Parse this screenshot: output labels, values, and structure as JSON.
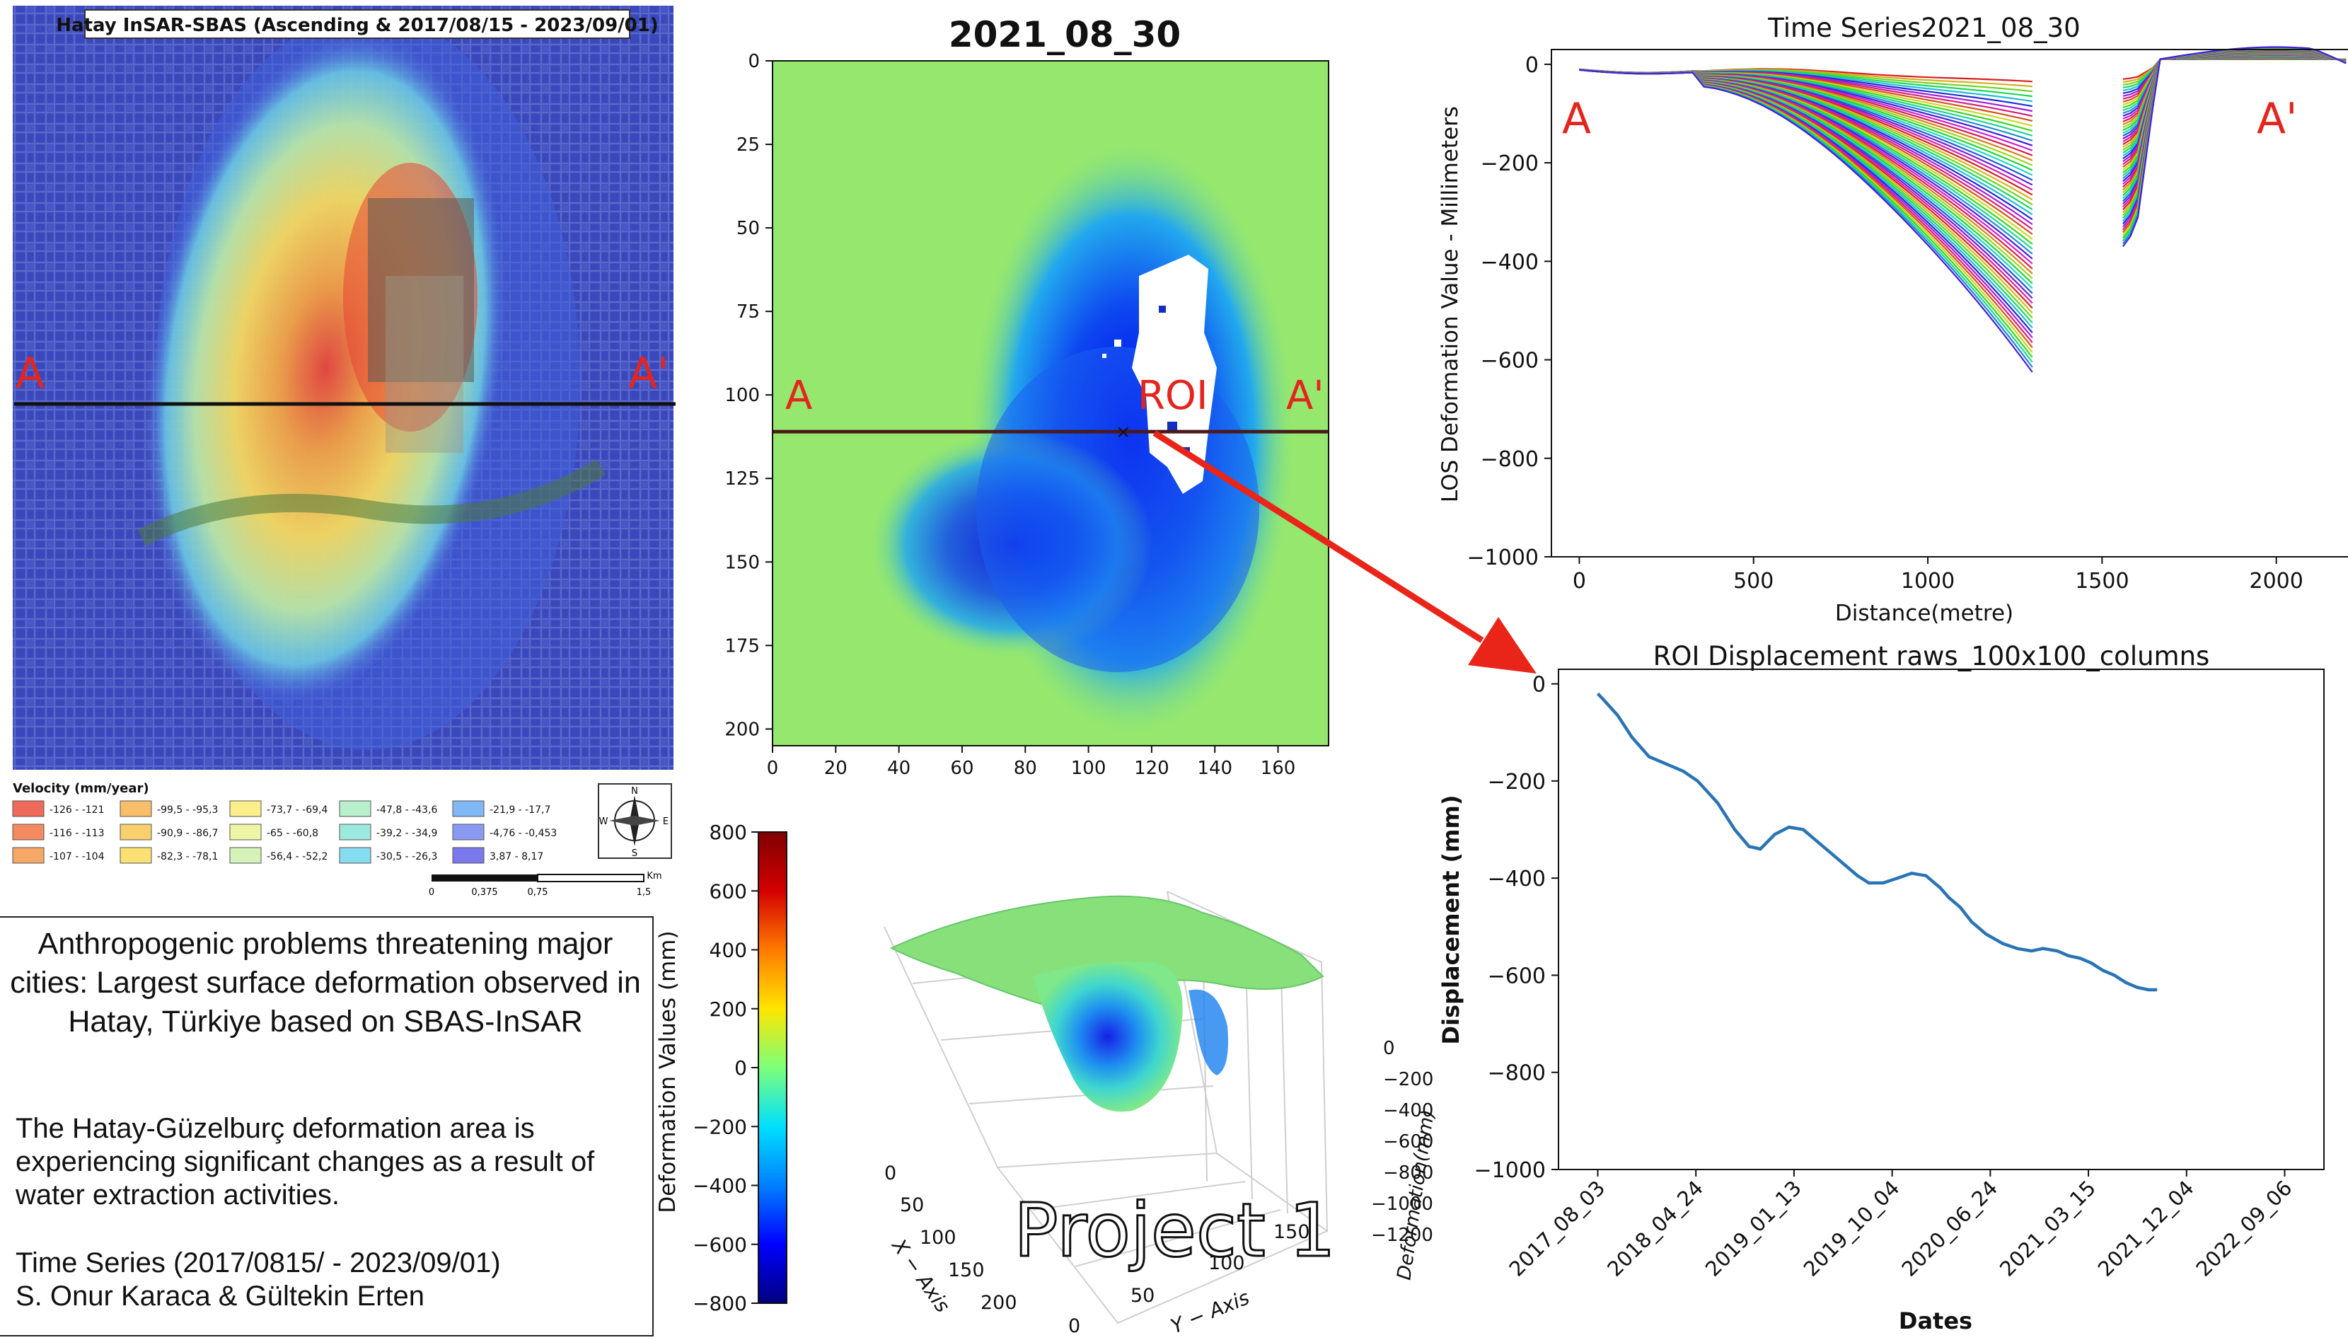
{
  "map": {
    "title": "Hatay InSAR-SBAS (Ascending & 2017/08/15 - 2023/09/01)",
    "label_a": "A",
    "label_a2": "A'",
    "legend_title": "Velocity (mm/year)",
    "legend": [
      {
        "label": "-126 - -121",
        "color": "#f06a5a"
      },
      {
        "label": "-116 - -113",
        "color": "#f38a60"
      },
      {
        "label": "-107 - -104",
        "color": "#f5a865"
      },
      {
        "label": "-99,5 - -95,3",
        "color": "#f8be6a"
      },
      {
        "label": "-90,9 - -86,7",
        "color": "#fad06e"
      },
      {
        "label": "-82,3 - -78,1",
        "color": "#fbe173"
      },
      {
        "label": "-73,7 - -69,4",
        "color": "#fbef8a"
      },
      {
        "label": "-65 - -60,8",
        "color": "#eef5a5"
      },
      {
        "label": "-56,4 - -52,2",
        "color": "#d5f3b8"
      },
      {
        "label": "-47,8 - -43,6",
        "color": "#b8f0cc"
      },
      {
        "label": "-39,2 - -34,9",
        "color": "#9de9e0"
      },
      {
        "label": "-30,5 - -26,3",
        "color": "#86dcf0"
      },
      {
        "label": "-21,9 - -17,7",
        "color": "#7fb8f5"
      },
      {
        "label": "-4,76 - -0,453",
        "color": "#8a9af2"
      },
      {
        "label": "3,87 - 8,17",
        "color": "#7a78ec"
      }
    ],
    "compass": {
      "n": "N",
      "s": "S",
      "e": "E",
      "w": "W"
    },
    "scale_ticks": [
      "0",
      "0,375",
      "0,75",
      "1,5"
    ],
    "scale_unit": "Km"
  },
  "description": {
    "title": "Anthropogenic problems threatening major cities: Largest surface deformation observed in Hatay, Türkiye based on SBAS-InSAR",
    "body": "The Hatay-Güzelburç deformation area is experiencing significant changes as a result of water extraction activities.",
    "series": "Time Series (2017/0815/ - 2023/09/01)",
    "authors": "S. Onur Karaca & Gültekin Erten"
  },
  "raster": {
    "title": "2021_08_30",
    "label_a": "A",
    "label_a2": "A'",
    "label_roi": "ROI"
  },
  "colorbar": {
    "label": "Deformation Values (mm)"
  },
  "surface3d": {
    "x_label": "X − Axis",
    "y_label": "Y − Axis",
    "z_label": "Deformation(mm)",
    "x_ticks": [
      "0",
      "50",
      "100",
      "150",
      "200"
    ],
    "y_ticks": [
      "0",
      "50",
      "100",
      "150"
    ],
    "z_ticks": [
      "0",
      "−200",
      "−400",
      "−600",
      "−800",
      "−1000",
      "−1200"
    ]
  },
  "watermark": "Project 1",
  "chart_data": [
    {
      "type": "heatmap",
      "title": "2021_08_30",
      "xlim": [
        0,
        176
      ],
      "ylim": [
        0,
        205
      ],
      "x_ticks": [
        "0",
        "20",
        "40",
        "60",
        "80",
        "100",
        "120",
        "140",
        "160"
      ],
      "y_ticks": [
        "0",
        "25",
        "50",
        "75",
        "100",
        "125",
        "150",
        "175",
        "200"
      ],
      "profile_row": 111,
      "roi_point": [
        111,
        111
      ]
    },
    {
      "type": "heatmap",
      "title": "",
      "ylabel": "Deformation Values (mm)",
      "ylim": [
        -800,
        800
      ],
      "ticks": [
        "800",
        "600",
        "400",
        "200",
        "0",
        "−200",
        "−400",
        "−600",
        "−800"
      ],
      "colormap": [
        "#00007f",
        "#0000ff",
        "#0080ff",
        "#00e0ff",
        "#7dff7a",
        "#ffe600",
        "#ff7a00",
        "#d40000",
        "#7f0000"
      ]
    },
    {
      "type": "line",
      "title": "Time Series2021_08_30",
      "xlabel": "Distance(metre)",
      "ylabel": "LOS Deformation Value - Millimeters",
      "xlim": [
        -80,
        2230
      ],
      "ylim": [
        -1000,
        30
      ],
      "x_ticks": [
        "0",
        "500",
        "1000",
        "1500",
        "2000"
      ],
      "y_ticks": [
        "0",
        "−200",
        "−400",
        "−600",
        "−800",
        "−1000"
      ],
      "annotation_a": "A",
      "annotation_a2": "A'",
      "curves_count": 60,
      "segment_left": {
        "x_start": 0,
        "x_end": 1300,
        "min_first": -25,
        "min_last": -615,
        "min_x": 1300
      },
      "segment_right": {
        "x_start": 1560,
        "x_end": 2200,
        "min_first": -30,
        "min_last": -370,
        "min_x": 1570
      }
    },
    {
      "type": "line",
      "title": "ROI Displacement raws_100x100_columns",
      "xlabel": "Dates",
      "ylabel": "Displacement (mm)",
      "ylim": [
        -1000,
        30
      ],
      "y_ticks": [
        "0",
        "−200",
        "−400",
        "−600",
        "−800",
        "−1000"
      ],
      "x_ticks": [
        "2017_08_03",
        "2018_04_24",
        "2019_01_13",
        "2019_10_04",
        "2020_06_24",
        "2021_03_15",
        "2021_12_04",
        "2022_09_06"
      ],
      "series": [
        {
          "x": [
            0,
            0.12,
            0.35,
            0.6,
            0.9,
            1.2,
            1.5,
            1.75,
            2.1,
            2.4,
            2.65,
            2.85,
            3.1,
            3.35,
            3.6,
            3.85,
            4.1,
            4.35,
            4.55,
            4.75,
            5.0,
            5.25,
            5.5,
            5.75,
            6.0,
            6.15,
            6.35,
            6.55,
            6.8,
            7.1,
            7.35,
            7.6,
            7.8,
            8.05,
            8.25,
            8.45,
            8.65,
            8.85,
            9.05,
            9.25,
            9.45,
            9.65,
            9.8
          ],
          "y": [
            -20,
            -35,
            -65,
            -110,
            -150,
            -165,
            -180,
            -200,
            -245,
            -300,
            -335,
            -340,
            -310,
            -295,
            -300,
            -325,
            -350,
            -375,
            -395,
            -410,
            -410,
            -400,
            -390,
            -395,
            -420,
            -440,
            -460,
            -490,
            -515,
            -535,
            -545,
            -550,
            -545,
            -550,
            -560,
            -565,
            -575,
            -590,
            -600,
            -615,
            -625,
            -630,
            -630
          ]
        }
      ]
    }
  ]
}
